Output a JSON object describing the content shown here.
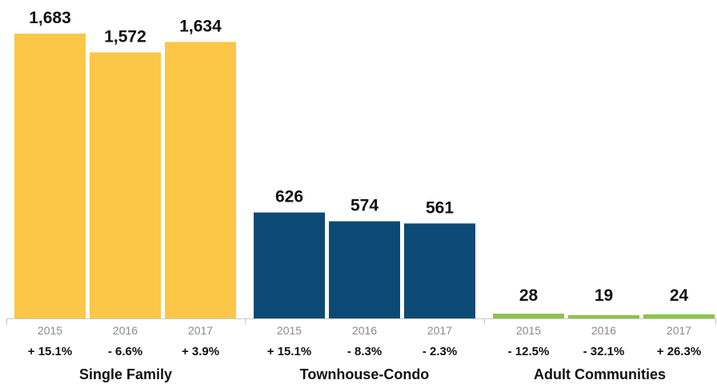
{
  "chart_data": {
    "type": "bar",
    "ylim": [
      0,
      1800
    ],
    "groups": [
      {
        "name": "Single Family",
        "color": "#FCC647",
        "bars": [
          {
            "year": "2015",
            "value": 1683,
            "label": "1,683",
            "change": "+ 15.1%"
          },
          {
            "year": "2016",
            "value": 1572,
            "label": "1,572",
            "change": "- 6.6%"
          },
          {
            "year": "2017",
            "value": 1634,
            "label": "1,634",
            "change": "+ 3.9%"
          }
        ]
      },
      {
        "name": "Townhouse-Condo",
        "color": "#0C4A75",
        "bars": [
          {
            "year": "2015",
            "value": 626,
            "label": "626",
            "change": "+ 15.1%"
          },
          {
            "year": "2016",
            "value": 574,
            "label": "574",
            "change": "- 8.3%"
          },
          {
            "year": "2017",
            "value": 561,
            "label": "561",
            "change": "- 2.3%"
          }
        ]
      },
      {
        "name": "Adult Communities",
        "color": "#8BC34A",
        "bars": [
          {
            "year": "2015",
            "value": 28,
            "label": "28",
            "change": "- 12.5%"
          },
          {
            "year": "2016",
            "value": 19,
            "label": "19",
            "change": "- 32.1%"
          },
          {
            "year": "2017",
            "value": 24,
            "label": "24",
            "change": "+ 26.3%"
          }
        ]
      }
    ]
  }
}
